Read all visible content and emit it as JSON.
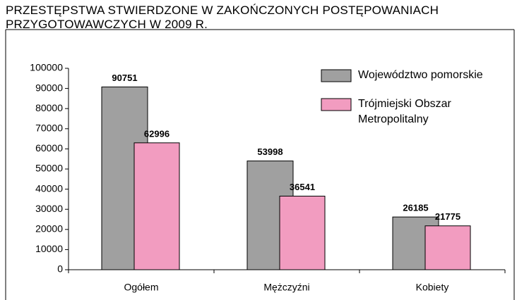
{
  "chart_data": {
    "type": "bar",
    "title": "PRZESTĘPSTWA STWIERDZONE W ZAKOŃCZONYCH POSTĘPOWANIACH PRZYGOTOWAWCZYCH W 2009 R.",
    "categories": [
      "Ogółem",
      "Mężczyźni",
      "Kobiety"
    ],
    "series": [
      {
        "name": "Województwo pomorskie",
        "color": "#a0a0a0",
        "values": [
          90751,
          53998,
          26185
        ]
      },
      {
        "name": "Trójmiejski Obszar Metropolitalny",
        "color": "#f29cc0",
        "values": [
          62996,
          36541,
          21775
        ]
      }
    ],
    "ylim": [
      0,
      100000
    ],
    "yticks": [
      0,
      10000,
      20000,
      30000,
      40000,
      50000,
      60000,
      70000,
      80000,
      90000,
      100000
    ]
  }
}
